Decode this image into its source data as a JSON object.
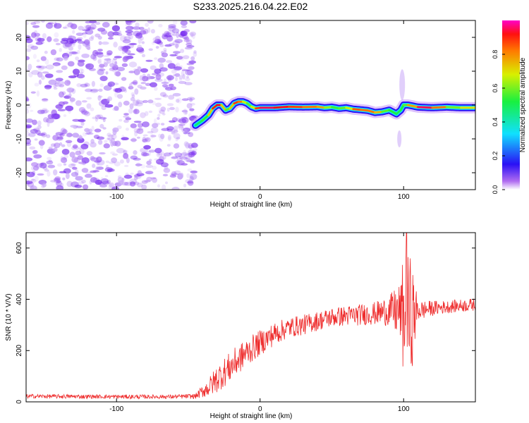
{
  "title": "S233.2025.216.04.22.E02",
  "colors": {
    "snr_line": "#ee2b2b",
    "scatter_noise": "#8a3cf0"
  },
  "chart_data": [
    {
      "type": "heatmap",
      "xlabel": "Height of straight line (km)",
      "ylabel": "Frequency (Hz)",
      "xlim": [
        -163,
        150
      ],
      "ylim": [
        -25,
        25
      ],
      "x_ticks": [
        -100,
        0,
        100
      ],
      "y_ticks": [
        -20,
        -10,
        0,
        10,
        20
      ],
      "colorbar": {
        "label": "Normalized spectral amplitude",
        "range": [
          0,
          1
        ],
        "ticks": [
          0.0,
          0.2,
          0.4,
          0.6,
          0.8
        ],
        "colormap": "rainbow"
      },
      "noise_region": {
        "x": [
          -163,
          -45
        ]
      },
      "ridge": {
        "x": [
          -45,
          -40,
          -36,
          -33,
          -30,
          -27,
          -24,
          -21,
          -18,
          -15,
          -12,
          -9,
          -6,
          -3,
          0,
          10,
          20,
          30,
          40,
          45,
          50,
          55,
          60,
          65,
          70,
          75,
          80,
          85,
          90,
          95,
          98,
          100,
          103,
          110,
          120,
          130,
          140,
          150
        ],
        "y": [
          -6,
          -4.5,
          -3,
          -1,
          0,
          0,
          -1.5,
          -1,
          0.5,
          1,
          1,
          0.5,
          -0.5,
          -1,
          -0.8,
          -0.8,
          -0.5,
          -0.6,
          -0.5,
          -0.8,
          -0.6,
          -1,
          -0.8,
          -1.2,
          -1.4,
          -1.6,
          -2.2,
          -2.0,
          -1.5,
          -2.6,
          -1.5,
          0.0,
          0.0,
          -0.6,
          -0.8,
          -0.6,
          -0.8,
          -0.8
        ],
        "amplitude": [
          0.45,
          0.5,
          0.6,
          0.85,
          0.95,
          0.9,
          0.55,
          0.6,
          0.85,
          0.9,
          0.75,
          0.6,
          0.55,
          0.8,
          0.95,
          0.95,
          0.9,
          0.85,
          0.8,
          0.75,
          0.5,
          0.6,
          0.55,
          0.8,
          0.9,
          0.75,
          0.9,
          0.6,
          0.55,
          0.5,
          0.5,
          0.55,
          0.6,
          0.95,
          0.95,
          0.7,
          0.5,
          0.9
        ]
      },
      "spike_at_x": 99
    },
    {
      "type": "line",
      "xlabel": "Height of straight line (km)",
      "ylabel": "SNR (10 * V/V)",
      "xlim": [
        -163,
        150
      ],
      "ylim": [
        0,
        660
      ],
      "x_ticks": [
        -100,
        0,
        100
      ],
      "y_ticks": [
        0,
        200,
        400,
        600
      ],
      "series": [
        {
          "trend_x": [
            -163,
            -100,
            -60,
            -45,
            -35,
            -30,
            -20,
            -10,
            0,
            10,
            20,
            30,
            40,
            50,
            60,
            70,
            80,
            90,
            98,
            100,
            105,
            110,
            120,
            130,
            140,
            150
          ],
          "trend_y": [
            22,
            20,
            20,
            22,
            60,
            90,
            140,
            190,
            230,
            265,
            290,
            300,
            315,
            330,
            335,
            340,
            345,
            355,
            350,
            330,
            330,
            355,
            365,
            370,
            375,
            380
          ],
          "noise_amplitude": [
            8,
            8,
            8,
            10,
            40,
            55,
            60,
            55,
            50,
            45,
            40,
            40,
            38,
            38,
            40,
            42,
            45,
            60,
            120,
            250,
            240,
            40,
            30,
            25,
            25,
            25
          ],
          "peak": {
            "x": 102,
            "y": 660
          }
        }
      ]
    }
  ]
}
